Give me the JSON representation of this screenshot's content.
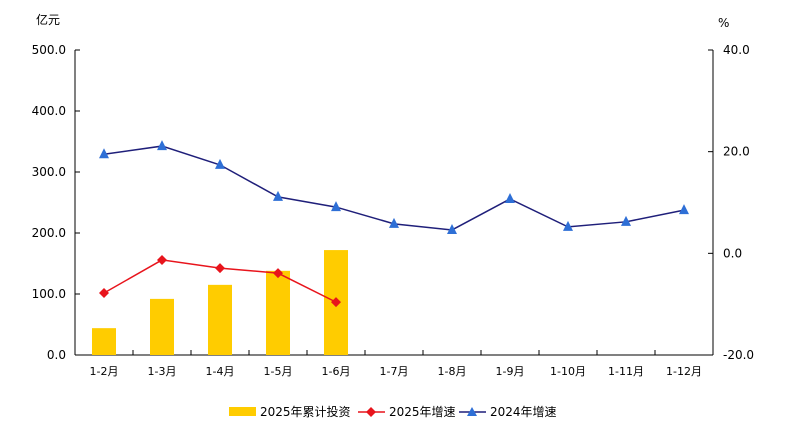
{
  "chart_data": {
    "type": "bar+line",
    "categories": [
      "1-2月",
      "1-3月",
      "1-4月",
      "1-5月",
      "1-6月",
      "1-7月",
      "1-8月",
      "1-9月",
      "1-10月",
      "1-11月",
      "1-12月"
    ],
    "left_axis": {
      "unit": "亿元",
      "min": 0,
      "max": 500,
      "ticks": [
        "0.0",
        "100.0",
        "200.0",
        "300.0",
        "400.0",
        "500.0"
      ]
    },
    "right_axis": {
      "unit": "%",
      "min": -20,
      "max": 40,
      "ticks": [
        "-20.0",
        "0.0",
        "20.0",
        "40.0"
      ]
    },
    "series": [
      {
        "name": "2025年累计投资",
        "type": "bar",
        "axis": "left",
        "color": "#FFCC00",
        "values": [
          44,
          92,
          115,
          138,
          172,
          null,
          null,
          null,
          null,
          null,
          null
        ]
      },
      {
        "name": "2025年增速",
        "type": "line",
        "axis": "right",
        "color": "#E8141C",
        "marker": "diamond",
        "values": [
          -7.8,
          -1.3,
          -2.9,
          -3.9,
          -9.6,
          null,
          null,
          null,
          null,
          null,
          null
        ]
      },
      {
        "name": "2024年增速",
        "type": "line",
        "axis": "right",
        "color": "#1F1F7A",
        "marker_color": "#2E6FD6",
        "marker": "triangle",
        "values": [
          19.5,
          21.1,
          17.4,
          11.1,
          9.1,
          5.8,
          4.6,
          10.7,
          5.2,
          6.2,
          8.5
        ]
      }
    ],
    "legend_position": "bottom",
    "grid": false
  },
  "labels": {
    "left_unit": "亿元",
    "right_unit": "%"
  }
}
